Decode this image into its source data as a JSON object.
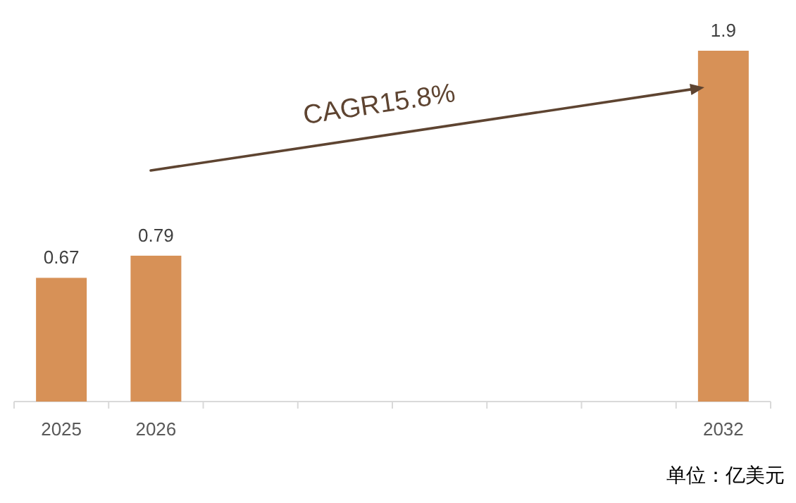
{
  "chart_data": {
    "type": "bar",
    "categories": [
      "2025",
      "2026",
      null,
      null,
      null,
      null,
      null,
      "2032"
    ],
    "values": [
      0.67,
      0.79,
      null,
      null,
      null,
      null,
      null,
      1.9
    ],
    "color": "#d79157",
    "data_labels": true,
    "annotations": [
      "CAGR15.8%",
      "单位：亿美元"
    ]
  }
}
